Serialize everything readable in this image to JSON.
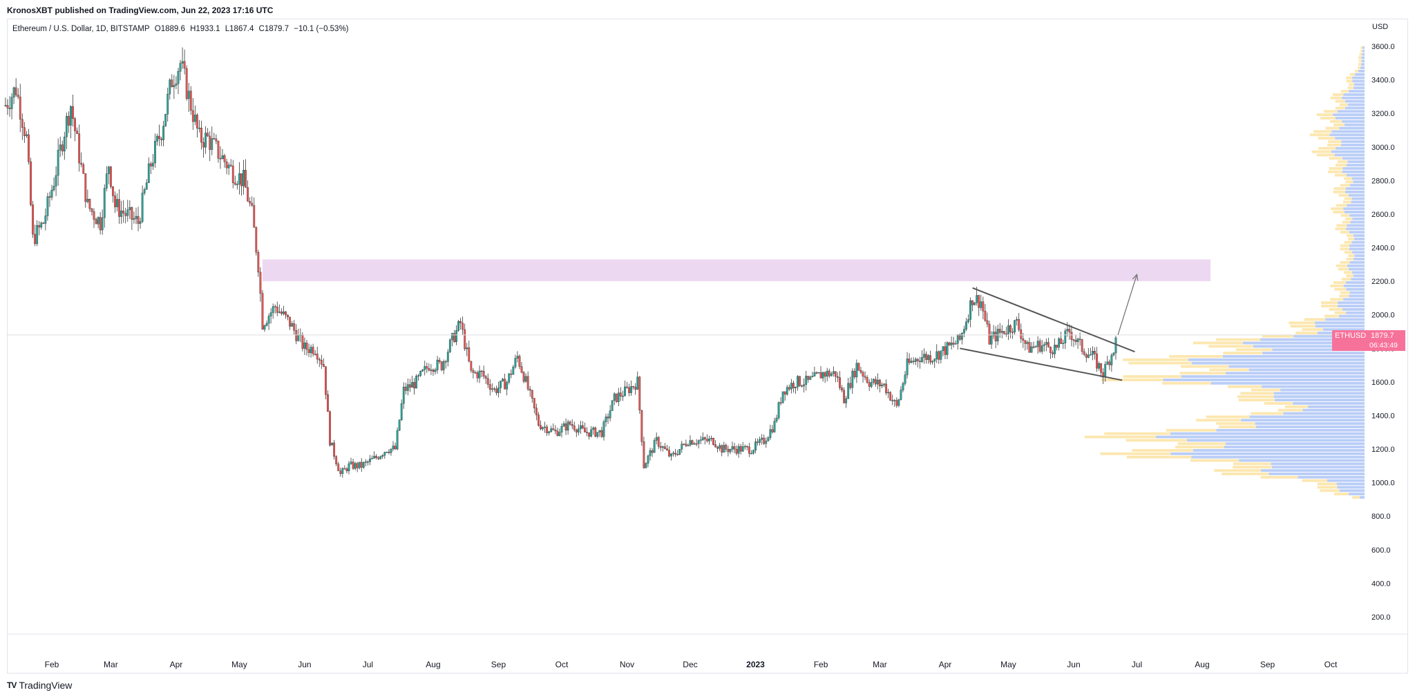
{
  "header": {
    "publisher": "KronosXBT published on TradingView.com, Jun 22, 2023 17:16 UTC"
  },
  "legend": {
    "symbol": "Ethereum / U.S. Dollar, 1D, BITSTAMP",
    "open": "O1889.6",
    "high": "H1933.1",
    "low": "L1867.4",
    "close": "C1879.7",
    "change": "−10.1 (−0.53%)"
  },
  "axis": {
    "currency": "USD"
  },
  "price_tag": {
    "symbol": "ETHUSD",
    "price": "1879.7",
    "countdown": "06:43:49"
  },
  "footer": {
    "brand": "TradingView",
    "logo": "TV"
  },
  "colors": {
    "up": "#26a69a",
    "down": "#ef5350",
    "zone": "#e1bee7",
    "tag": "#f7729a",
    "volume_up": "#b9cdf7",
    "volume_down": "#fce7b0"
  },
  "chart_data": {
    "type": "candlestick",
    "title": "Ethereum / U.S. Dollar, 1D, BITSTAMP",
    "ylabel": "USD",
    "ylim": [
      100,
      3700
    ],
    "y_ticks": [
      "200.0",
      "400.0",
      "600.0",
      "800.0",
      "1000.0",
      "1200.0",
      "1400.0",
      "1600.0",
      "1800.0",
      "2000.0",
      "2200.0",
      "2400.0",
      "2600.0",
      "2800.0",
      "3000.0",
      "3200.0",
      "3400.0",
      "3600.0"
    ],
    "x_ticks": [
      {
        "label": "Feb",
        "date": "2022-02-01"
      },
      {
        "label": "Mar",
        "date": "2022-03-01"
      },
      {
        "label": "Apr",
        "date": "2022-04-01"
      },
      {
        "label": "May",
        "date": "2022-05-01"
      },
      {
        "label": "Jun",
        "date": "2022-06-01"
      },
      {
        "label": "Jul",
        "date": "2022-07-01"
      },
      {
        "label": "Aug",
        "date": "2022-08-01"
      },
      {
        "label": "Sep",
        "date": "2022-09-01"
      },
      {
        "label": "Oct",
        "date": "2022-10-01"
      },
      {
        "label": "Nov",
        "date": "2022-11-01"
      },
      {
        "label": "Dec",
        "date": "2022-12-01"
      },
      {
        "label": "2023",
        "date": "2023-01-01"
      },
      {
        "label": "Feb",
        "date": "2023-02-01"
      },
      {
        "label": "Mar",
        "date": "2023-03-01"
      },
      {
        "label": "Apr",
        "date": "2023-04-01"
      },
      {
        "label": "May",
        "date": "2023-05-01"
      },
      {
        "label": "Jun",
        "date": "2023-06-01"
      },
      {
        "label": "Jul",
        "date": "2023-07-01"
      },
      {
        "label": "Aug",
        "date": "2023-08-01"
      },
      {
        "label": "Sep",
        "date": "2023-09-01"
      },
      {
        "label": "Oct",
        "date": "2023-10-01"
      }
    ],
    "series": [
      {
        "values": [
          {
            "date": "2022-01-10",
            "close": 3250
          },
          {
            "date": "2022-01-15",
            "close": 3350
          },
          {
            "date": "2022-01-20",
            "close": 3050
          },
          {
            "date": "2022-01-23",
            "close": 2450
          },
          {
            "date": "2022-01-28",
            "close": 2550
          },
          {
            "date": "2022-02-02",
            "close": 2800
          },
          {
            "date": "2022-02-07",
            "close": 3100
          },
          {
            "date": "2022-02-10",
            "close": 3250
          },
          {
            "date": "2022-02-14",
            "close": 2950
          },
          {
            "date": "2022-02-18",
            "close": 2650
          },
          {
            "date": "2022-02-24",
            "close": 2550
          },
          {
            "date": "2022-02-28",
            "close": 2900
          },
          {
            "date": "2022-03-03",
            "close": 2650
          },
          {
            "date": "2022-03-08",
            "close": 2600
          },
          {
            "date": "2022-03-14",
            "close": 2550
          },
          {
            "date": "2022-03-20",
            "close": 2900
          },
          {
            "date": "2022-03-25",
            "close": 3100
          },
          {
            "date": "2022-03-30",
            "close": 3400
          },
          {
            "date": "2022-04-03",
            "close": 3500
          },
          {
            "date": "2022-04-08",
            "close": 3250
          },
          {
            "date": "2022-04-12",
            "close": 3050
          },
          {
            "date": "2022-04-16",
            "close": 3050
          },
          {
            "date": "2022-04-22",
            "close": 2950
          },
          {
            "date": "2022-04-28",
            "close": 2850
          },
          {
            "date": "2022-05-03",
            "close": 2800
          },
          {
            "date": "2022-05-07",
            "close": 2600
          },
          {
            "date": "2022-05-10",
            "close": 2300
          },
          {
            "date": "2022-05-12",
            "close": 1950
          },
          {
            "date": "2022-05-18",
            "close": 2050
          },
          {
            "date": "2022-05-25",
            "close": 1950
          },
          {
            "date": "2022-06-01",
            "close": 1800
          },
          {
            "date": "2022-06-06",
            "close": 1800
          },
          {
            "date": "2022-06-10",
            "close": 1700
          },
          {
            "date": "2022-06-13",
            "close": 1250
          },
          {
            "date": "2022-06-18",
            "close": 1050
          },
          {
            "date": "2022-06-22",
            "close": 1100
          },
          {
            "date": "2022-06-28",
            "close": 1100
          },
          {
            "date": "2022-07-05",
            "close": 1150
          },
          {
            "date": "2022-07-10",
            "close": 1200
          },
          {
            "date": "2022-07-14",
            "close": 1200
          },
          {
            "date": "2022-07-18",
            "close": 1550
          },
          {
            "date": "2022-07-24",
            "close": 1600
          },
          {
            "date": "2022-07-30",
            "close": 1700
          },
          {
            "date": "2022-08-05",
            "close": 1700
          },
          {
            "date": "2022-08-10",
            "close": 1850
          },
          {
            "date": "2022-08-14",
            "close": 1950
          },
          {
            "date": "2022-08-19",
            "close": 1650
          },
          {
            "date": "2022-08-24",
            "close": 1650
          },
          {
            "date": "2022-08-30",
            "close": 1550
          },
          {
            "date": "2022-09-05",
            "close": 1600
          },
          {
            "date": "2022-09-10",
            "close": 1750
          },
          {
            "date": "2022-09-14",
            "close": 1600
          },
          {
            "date": "2022-09-20",
            "close": 1350
          },
          {
            "date": "2022-09-28",
            "close": 1300
          },
          {
            "date": "2022-10-05",
            "close": 1350
          },
          {
            "date": "2022-10-12",
            "close": 1300
          },
          {
            "date": "2022-10-20",
            "close": 1300
          },
          {
            "date": "2022-10-26",
            "close": 1500
          },
          {
            "date": "2022-11-01",
            "close": 1550
          },
          {
            "date": "2022-11-06",
            "close": 1600
          },
          {
            "date": "2022-11-09",
            "close": 1100
          },
          {
            "date": "2022-11-15",
            "close": 1250
          },
          {
            "date": "2022-11-22",
            "close": 1150
          },
          {
            "date": "2022-11-30",
            "close": 1250
          },
          {
            "date": "2022-12-05",
            "close": 1250
          },
          {
            "date": "2022-12-12",
            "close": 1250
          },
          {
            "date": "2022-12-16",
            "close": 1200
          },
          {
            "date": "2022-12-22",
            "close": 1200
          },
          {
            "date": "2022-12-30",
            "close": 1200
          },
          {
            "date": "2023-01-05",
            "close": 1250
          },
          {
            "date": "2023-01-10",
            "close": 1350
          },
          {
            "date": "2023-01-14",
            "close": 1550
          },
          {
            "date": "2023-01-20",
            "close": 1600
          },
          {
            "date": "2023-01-26",
            "close": 1600
          },
          {
            "date": "2023-02-02",
            "close": 1650
          },
          {
            "date": "2023-02-08",
            "close": 1650
          },
          {
            "date": "2023-02-12",
            "close": 1500
          },
          {
            "date": "2023-02-18",
            "close": 1700
          },
          {
            "date": "2023-02-24",
            "close": 1600
          },
          {
            "date": "2023-03-03",
            "close": 1580
          },
          {
            "date": "2023-03-09",
            "close": 1450
          },
          {
            "date": "2023-03-14",
            "close": 1700
          },
          {
            "date": "2023-03-20",
            "close": 1750
          },
          {
            "date": "2023-03-26",
            "close": 1750
          },
          {
            "date": "2023-04-02",
            "close": 1800
          },
          {
            "date": "2023-04-08",
            "close": 1850
          },
          {
            "date": "2023-04-14",
            "close": 2100
          },
          {
            "date": "2023-04-18",
            "close": 2080
          },
          {
            "date": "2023-04-22",
            "close": 1850
          },
          {
            "date": "2023-04-28",
            "close": 1900
          },
          {
            "date": "2023-05-05",
            "close": 1950
          },
          {
            "date": "2023-05-10",
            "close": 1800
          },
          {
            "date": "2023-05-16",
            "close": 1820
          },
          {
            "date": "2023-05-24",
            "close": 1800
          },
          {
            "date": "2023-05-30",
            "close": 1900
          },
          {
            "date": "2023-06-05",
            "close": 1800
          },
          {
            "date": "2023-06-10",
            "close": 1750
          },
          {
            "date": "2023-06-15",
            "close": 1650
          },
          {
            "date": "2023-06-20",
            "close": 1800
          },
          {
            "date": "2023-06-22",
            "close": 1879.7
          }
        ]
      }
    ],
    "resistance_zone": {
      "from": "2022-05-12",
      "to": "2023-08-05",
      "low": 2200,
      "high": 2330
    },
    "wedge_upper": [
      {
        "date": "2023-04-14",
        "price": 2160
      },
      {
        "date": "2023-06-30",
        "price": 1780
      }
    ],
    "wedge_lower": [
      {
        "date": "2023-04-08",
        "price": 1800
      },
      {
        "date": "2023-06-24",
        "price": 1610
      }
    ],
    "projection_arrow": [
      {
        "date": "2023-06-22",
        "price": 1880
      },
      {
        "date": "2023-07-01",
        "price": 2240
      }
    ],
    "current_price": 1879.7,
    "volume_profile": {
      "price_step": 20,
      "levels": [
        {
          "price": 900,
          "up": 0.03,
          "down": 0.02
        },
        {
          "price": 1000,
          "up": 0.12,
          "down": 0.18
        },
        {
          "price": 1100,
          "up": 0.2,
          "down": 0.5
        },
        {
          "price": 1200,
          "up": 0.25,
          "down": 0.72
        },
        {
          "price": 1300,
          "up": 0.22,
          "down": 0.65
        },
        {
          "price": 1400,
          "up": 0.12,
          "down": 0.3
        },
        {
          "price": 1500,
          "up": 0.12,
          "down": 0.3
        },
        {
          "price": 1600,
          "up": 0.2,
          "down": 0.65
        },
        {
          "price": 1700,
          "up": 0.22,
          "down": 0.6
        },
        {
          "price": 1800,
          "up": 0.18,
          "down": 0.45
        },
        {
          "price": 1900,
          "up": 0.1,
          "down": 0.2
        },
        {
          "price": 2000,
          "up": 0.06,
          "down": 0.1
        },
        {
          "price": 2200,
          "up": 0.04,
          "down": 0.06
        },
        {
          "price": 2400,
          "up": 0.03,
          "down": 0.05
        },
        {
          "price": 2600,
          "up": 0.04,
          "down": 0.07
        },
        {
          "price": 2800,
          "up": 0.04,
          "down": 0.06
        },
        {
          "price": 3000,
          "up": 0.07,
          "down": 0.12
        },
        {
          "price": 3200,
          "up": 0.05,
          "down": 0.1
        },
        {
          "price": 3400,
          "up": 0.02,
          "down": 0.04
        },
        {
          "price": 3500,
          "up": 0.01,
          "down": 0.01
        }
      ]
    }
  }
}
